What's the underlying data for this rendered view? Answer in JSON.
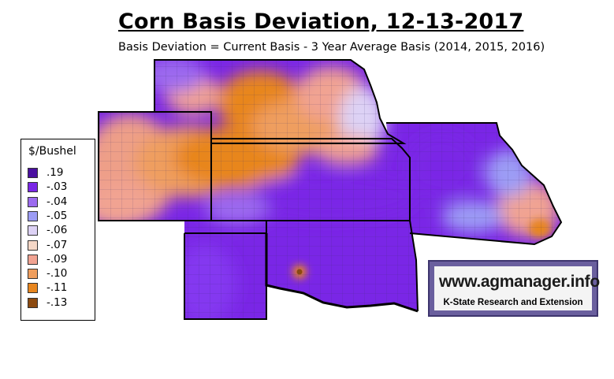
{
  "title": "Corn Basis Deviation, 12-13-2017",
  "subtitle": "Basis Deviation = Current Basis - 3 Year Average Basis (2014, 2015, 2016)",
  "legend": {
    "title": "$/Bushel",
    "items": [
      {
        "label": ".19",
        "color": "#4a0fa0"
      },
      {
        "label": "-.03",
        "color": "#7a26e6"
      },
      {
        "label": "-.04",
        "color": "#9c6bef"
      },
      {
        "label": "-.05",
        "color": "#9c9cf5"
      },
      {
        "label": "-.06",
        "color": "#ddd2f5"
      },
      {
        "label": "-.07",
        "color": "#f5d7c6"
      },
      {
        "label": "-.09",
        "color": "#f1a392"
      },
      {
        "label": "-.10",
        "color": "#ef9e5e"
      },
      {
        "label": "-.11",
        "color": "#e8861e"
      },
      {
        "label": "-.13",
        "color": "#8c4a10"
      }
    ]
  },
  "logo": {
    "url": "www.agmanager.info",
    "sub": "K-State Research and Extension"
  }
}
